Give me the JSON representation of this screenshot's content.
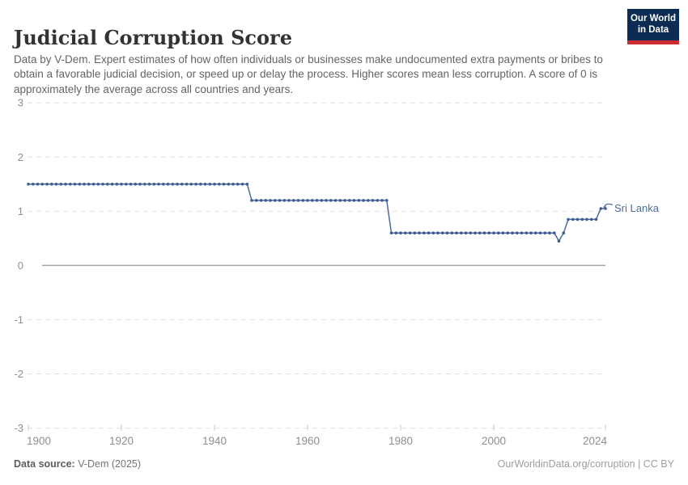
{
  "header": {
    "title": "Judicial Corruption Score",
    "subtitle": "Data by V-Dem. Expert estimates of how often individuals or businesses make undocumented extra payments or bribes to obtain a favorable judicial decision, or speed up or delay the process. Higher scores mean less corruption. A score of 0 is approximately the average across all countries and years.",
    "logo": {
      "line1": "Our World",
      "line2": "in Data"
    }
  },
  "chart_data": {
    "type": "line",
    "title": "Judicial Corruption Score",
    "entity": "Sri Lanka",
    "x": {
      "ticks": [
        1900,
        1920,
        1940,
        1960,
        1980,
        2000,
        2024
      ],
      "range": [
        1900,
        2024
      ]
    },
    "y": {
      "ticks": [
        3,
        2,
        1,
        0,
        -1,
        -2,
        -3
      ],
      "range": [
        -3,
        3
      ]
    },
    "grid": true,
    "legend_position": "end-of-line-label",
    "series": [
      {
        "name": "Sri Lanka",
        "color": "#4c6a9c",
        "marker_color": "#3d5c94",
        "step_segments": [
          {
            "from": 1900,
            "to": 1947,
            "value": 1.5
          },
          {
            "from": 1948,
            "to": 1977,
            "value": 1.2
          },
          {
            "from": 1978,
            "to": 2013,
            "value": 0.6
          },
          {
            "from": 2014,
            "to": 2014,
            "value": 0.45
          },
          {
            "from": 2015,
            "to": 2015,
            "value": 0.6
          },
          {
            "from": 2016,
            "to": 2022,
            "value": 0.85
          },
          {
            "from": 2023,
            "to": 2024,
            "value": 1.05
          }
        ]
      }
    ],
    "colors": {
      "gridline": "#e0e0e0",
      "zero_line": "#a5a5a5",
      "axis_label": "#8f8f8f",
      "tick_mark": "#c8c8c8"
    }
  },
  "footer": {
    "source_label": "Data source:",
    "source_value": " V-Dem (2025)",
    "attribution": "OurWorldinData.org/corruption | CC BY"
  }
}
